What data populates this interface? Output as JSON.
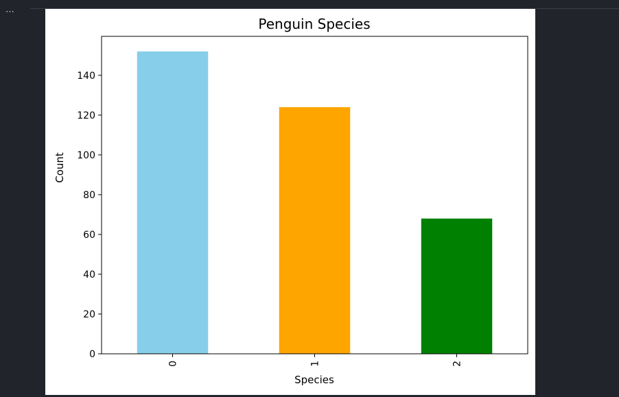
{
  "cell": {
    "collapse_label": "⋯"
  },
  "chart_data": {
    "type": "bar",
    "title": "Penguin Species",
    "xlabel": "Species",
    "ylabel": "Count",
    "categories": [
      "0",
      "1",
      "2"
    ],
    "values": [
      152,
      124,
      68
    ],
    "colors": [
      "#87ceeb",
      "#ffa500",
      "#008000"
    ],
    "ylim": [
      0,
      159.6
    ],
    "yticks": [
      0,
      20,
      40,
      60,
      80,
      100,
      120,
      140
    ],
    "xtick_rotation": "vertical",
    "grid": false,
    "legend": "none"
  }
}
